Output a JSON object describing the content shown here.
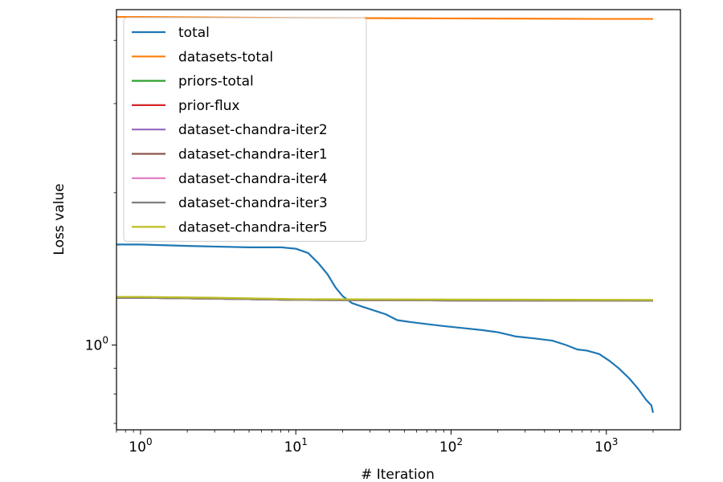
{
  "chart_data": {
    "type": "line",
    "title": "",
    "xlabel": "# Iteration",
    "ylabel": "Loss value",
    "xscale": "log",
    "yscale": "log",
    "xlim": [
      0.7,
      3000
    ],
    "ylim": [
      0.68,
      4.6
    ],
    "grid": false,
    "legend_position": "upper-left",
    "x_ticks": [
      {
        "value": 1,
        "base": "10",
        "exp": "0"
      },
      {
        "value": 10,
        "base": "10",
        "exp": "1"
      },
      {
        "value": 100,
        "base": "10",
        "exp": "2"
      },
      {
        "value": 1000,
        "base": "10",
        "exp": "3"
      }
    ],
    "y_ticks": [
      {
        "value": 1,
        "base": "10",
        "exp": "0"
      }
    ],
    "series": [
      {
        "name": "total",
        "color": "#1f77b4",
        "points": [
          [
            0.7,
            1.58
          ],
          [
            1,
            1.58
          ],
          [
            2,
            1.57
          ],
          [
            3,
            1.565
          ],
          [
            5,
            1.56
          ],
          [
            8,
            1.56
          ],
          [
            10,
            1.55
          ],
          [
            12,
            1.52
          ],
          [
            14,
            1.45
          ],
          [
            16,
            1.38
          ],
          [
            18,
            1.3
          ],
          [
            20,
            1.25
          ],
          [
            23,
            1.21
          ],
          [
            27,
            1.19
          ],
          [
            32,
            1.17
          ],
          [
            38,
            1.15
          ],
          [
            45,
            1.12
          ],
          [
            55,
            1.11
          ],
          [
            70,
            1.1
          ],
          [
            90,
            1.09
          ],
          [
            120,
            1.08
          ],
          [
            160,
            1.07
          ],
          [
            200,
            1.06
          ],
          [
            260,
            1.04
          ],
          [
            350,
            1.03
          ],
          [
            450,
            1.02
          ],
          [
            550,
            1.0
          ],
          [
            650,
            0.98
          ],
          [
            750,
            0.975
          ],
          [
            900,
            0.96
          ],
          [
            1050,
            0.93
          ],
          [
            1200,
            0.9
          ],
          [
            1400,
            0.86
          ],
          [
            1600,
            0.82
          ],
          [
            1800,
            0.78
          ],
          [
            1950,
            0.76
          ],
          [
            2000,
            0.735
          ]
        ]
      },
      {
        "name": "datasets-total",
        "color": "#ff7f0e",
        "points": [
          [
            0.7,
            4.45
          ],
          [
            1,
            4.45
          ],
          [
            3,
            4.44
          ],
          [
            10,
            4.43
          ],
          [
            100,
            4.42
          ],
          [
            1000,
            4.41
          ],
          [
            2000,
            4.41
          ]
        ]
      },
      {
        "name": "priors-total",
        "color": "#2ca02c",
        "points": [
          [
            0.7,
            1.24
          ],
          [
            1,
            1.24
          ],
          [
            3,
            1.235
          ],
          [
            10,
            1.228
          ],
          [
            100,
            1.225
          ],
          [
            2000,
            1.223
          ]
        ]
      },
      {
        "name": "prior-flux",
        "color": "#d62728",
        "points": [
          [
            0.7,
            1.24
          ],
          [
            1,
            1.24
          ],
          [
            3,
            1.235
          ],
          [
            10,
            1.228
          ],
          [
            100,
            1.225
          ],
          [
            2000,
            1.223
          ]
        ]
      },
      {
        "name": "dataset-chandra-iter2",
        "color": "#9467bd",
        "points": [
          [
            0.7,
            1.24
          ],
          [
            1,
            1.24
          ],
          [
            3,
            1.235
          ],
          [
            10,
            1.228
          ],
          [
            100,
            1.225
          ],
          [
            2000,
            1.223
          ]
        ]
      },
      {
        "name": "dataset-chandra-iter1",
        "color": "#8c564b",
        "points": [
          [
            0.7,
            1.24
          ],
          [
            1,
            1.24
          ],
          [
            3,
            1.235
          ],
          [
            10,
            1.228
          ],
          [
            100,
            1.225
          ],
          [
            2000,
            1.223
          ]
        ]
      },
      {
        "name": "dataset-chandra-iter4",
        "color": "#e377c2",
        "points": [
          [
            0.7,
            1.24
          ],
          [
            1,
            1.24
          ],
          [
            3,
            1.235
          ],
          [
            10,
            1.228
          ],
          [
            100,
            1.225
          ],
          [
            2000,
            1.223
          ]
        ]
      },
      {
        "name": "dataset-chandra-iter3",
        "color": "#7f7f7f",
        "points": [
          [
            0.7,
            1.24
          ],
          [
            1,
            1.24
          ],
          [
            3,
            1.235
          ],
          [
            10,
            1.228
          ],
          [
            100,
            1.225
          ],
          [
            2000,
            1.223
          ]
        ]
      },
      {
        "name": "dataset-chandra-iter5",
        "color": "#bcbd22",
        "points": [
          [
            0.7,
            1.245
          ],
          [
            1,
            1.245
          ],
          [
            3,
            1.24
          ],
          [
            10,
            1.232
          ],
          [
            100,
            1.23
          ],
          [
            2000,
            1.228
          ]
        ]
      }
    ]
  }
}
